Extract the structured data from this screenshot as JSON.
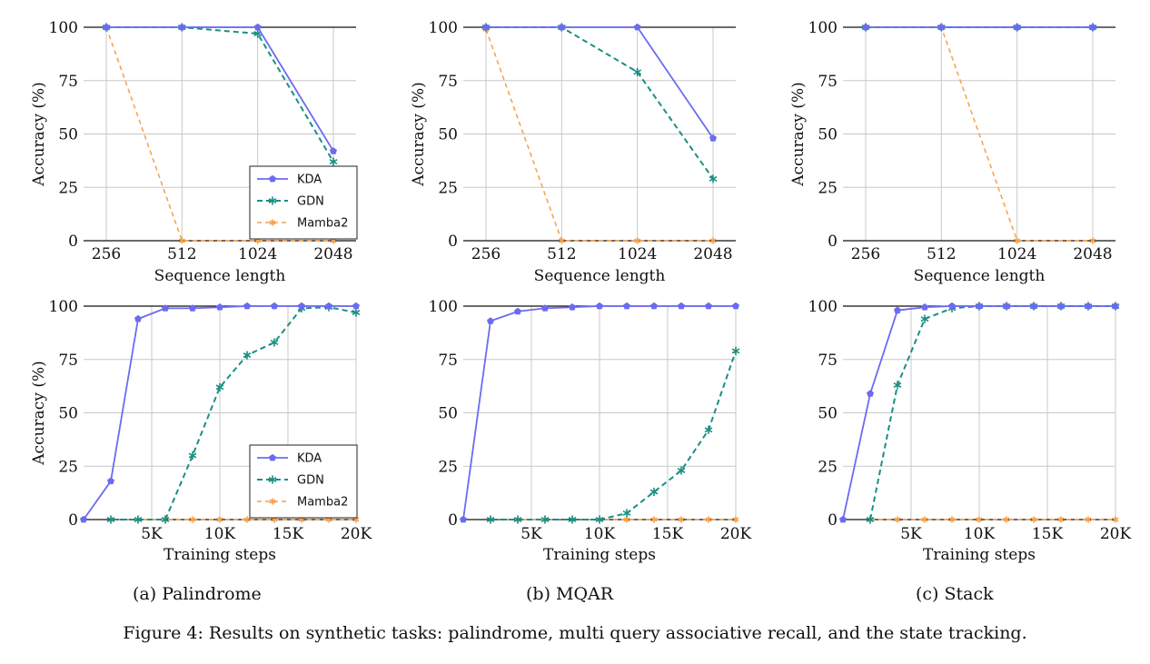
{
  "figure_caption": "Figure 4: Results on synthetic tasks: palindrome, multi query associative recall, and the state tracking.",
  "subcaptions": [
    "(a) Palindrome",
    "(b) MQAR",
    "(c) Stack"
  ],
  "colors": {
    "KDA": "#6b6bf2",
    "GDN": "#1a8f84",
    "Mamba2": "#f5a04a",
    "grid": "#c8c8c8"
  },
  "chart_data": [
    {
      "type": "line",
      "panel": "palindrome-seq",
      "xlabel": "Sequence length",
      "ylabel": "Accuracy (%)",
      "x": [
        256,
        512,
        1024,
        2048
      ],
      "xticks": [
        "256",
        "512",
        "1024",
        "2048"
      ],
      "x_scale": "categorical",
      "ylim": [
        0,
        100
      ],
      "yticks": [
        0,
        25,
        50,
        75,
        100
      ],
      "grid": true,
      "legend": "bottom-right",
      "series": [
        {
          "name": "KDA",
          "values": [
            100,
            100,
            100,
            42
          ]
        },
        {
          "name": "GDN",
          "values": [
            100,
            100,
            97,
            37
          ]
        },
        {
          "name": "Mamba2",
          "values": [
            100,
            0,
            0,
            0
          ]
        }
      ]
    },
    {
      "type": "line",
      "panel": "mqar-seq",
      "xlabel": "Sequence length",
      "ylabel": "Accuracy (%)",
      "x": [
        256,
        512,
        1024,
        2048
      ],
      "xticks": [
        "256",
        "512",
        "1024",
        "2048"
      ],
      "x_scale": "categorical",
      "ylim": [
        0,
        100
      ],
      "yticks": [
        0,
        25,
        50,
        75,
        100
      ],
      "grid": true,
      "legend": null,
      "series": [
        {
          "name": "KDA",
          "values": [
            100,
            100,
            100,
            48
          ]
        },
        {
          "name": "GDN",
          "values": [
            100,
            100,
            79,
            29
          ]
        },
        {
          "name": "Mamba2",
          "values": [
            99,
            0,
            0,
            0
          ]
        }
      ]
    },
    {
      "type": "line",
      "panel": "stack-seq",
      "xlabel": "Sequence length",
      "ylabel": "Accuracy (%)",
      "x": [
        256,
        512,
        1024,
        2048
      ],
      "xticks": [
        "256",
        "512",
        "1024",
        "2048"
      ],
      "x_scale": "categorical",
      "ylim": [
        0,
        100
      ],
      "yticks": [
        0,
        25,
        50,
        75,
        100
      ],
      "grid": true,
      "legend": null,
      "series": [
        {
          "name": "KDA",
          "values": [
            100,
            100,
            100,
            100
          ]
        },
        {
          "name": "GDN",
          "values": [
            100,
            100,
            100,
            100
          ]
        },
        {
          "name": "Mamba2",
          "values": [
            100,
            100,
            0,
            0
          ]
        }
      ]
    },
    {
      "type": "line",
      "panel": "palindrome-steps",
      "xlabel": "Training steps",
      "ylabel": "Accuracy (%)",
      "x": [
        0,
        2000,
        4000,
        6000,
        8000,
        10000,
        12000,
        14000,
        16000,
        18000,
        20000
      ],
      "xticks": [
        "5K",
        "10K",
        "15K",
        "20K"
      ],
      "xtick_values": [
        5000,
        10000,
        15000,
        20000
      ],
      "x_scale": "linear",
      "xlim": [
        0,
        20000
      ],
      "ylim": [
        0,
        100
      ],
      "yticks": [
        0,
        25,
        50,
        75,
        100
      ],
      "grid": true,
      "legend": "bottom-right",
      "series": [
        {
          "name": "KDA",
          "values": [
            0,
            18,
            94,
            99,
            99,
            99.5,
            100,
            100,
            100,
            100,
            100
          ],
          "x": [
            0,
            2000,
            4000,
            6000,
            8000,
            10000,
            12000,
            14000,
            16000,
            18000,
            20000
          ]
        },
        {
          "name": "GDN",
          "values": [
            0,
            0,
            0,
            30,
            62,
            77,
            83,
            99,
            99.5,
            97
          ],
          "x": [
            2000,
            4000,
            6000,
            8000,
            10000,
            12000,
            14000,
            16000,
            18000,
            20000
          ]
        },
        {
          "name": "Mamba2",
          "values": [
            0,
            0,
            0,
            0,
            0,
            0,
            0,
            0,
            0,
            0
          ],
          "x": [
            2000,
            4000,
            6000,
            8000,
            10000,
            12000,
            14000,
            16000,
            18000,
            20000
          ]
        }
      ]
    },
    {
      "type": "line",
      "panel": "mqar-steps",
      "xlabel": "Training steps",
      "ylabel": "",
      "x": [
        0,
        2000,
        4000,
        6000,
        8000,
        10000,
        12000,
        14000,
        16000,
        18000,
        20000
      ],
      "xticks": [
        "5K",
        "10K",
        "15K",
        "20K"
      ],
      "xtick_values": [
        5000,
        10000,
        15000,
        20000
      ],
      "x_scale": "linear",
      "xlim": [
        0,
        20000
      ],
      "ylim": [
        0,
        100
      ],
      "yticks": [
        0,
        25,
        50,
        75,
        100
      ],
      "grid": true,
      "legend": null,
      "series": [
        {
          "name": "KDA",
          "values": [
            0,
            93,
            97.5,
            99,
            99.5,
            100,
            100,
            100,
            100,
            100,
            100
          ],
          "x": [
            0,
            2000,
            4000,
            6000,
            8000,
            10000,
            12000,
            14000,
            16000,
            18000,
            20000
          ]
        },
        {
          "name": "GDN",
          "values": [
            0,
            0,
            0,
            0,
            0,
            3,
            13,
            23,
            42,
            79
          ],
          "x": [
            2000,
            4000,
            6000,
            8000,
            10000,
            12000,
            14000,
            16000,
            18000,
            20000
          ]
        },
        {
          "name": "Mamba2",
          "values": [
            0,
            0,
            0,
            0,
            0,
            0,
            0,
            0,
            0,
            0
          ],
          "x": [
            2000,
            4000,
            6000,
            8000,
            10000,
            12000,
            14000,
            16000,
            18000,
            20000
          ]
        }
      ]
    },
    {
      "type": "line",
      "panel": "stack-steps",
      "xlabel": "Training steps",
      "ylabel": "",
      "x": [
        0,
        2000,
        4000,
        6000,
        8000,
        10000,
        12000,
        14000,
        16000,
        18000,
        20000
      ],
      "xticks": [
        "5K",
        "10K",
        "15K",
        "20K"
      ],
      "xtick_values": [
        5000,
        10000,
        15000,
        20000
      ],
      "x_scale": "linear",
      "xlim": [
        0,
        20000
      ],
      "ylim": [
        0,
        100
      ],
      "yticks": [
        0,
        25,
        50,
        75,
        100
      ],
      "grid": true,
      "legend": null,
      "series": [
        {
          "name": "KDA",
          "values": [
            0,
            59,
            98,
            99.5,
            100,
            100,
            100,
            100,
            100,
            100,
            100
          ],
          "x": [
            0,
            2000,
            4000,
            6000,
            8000,
            10000,
            12000,
            14000,
            16000,
            18000,
            20000
          ]
        },
        {
          "name": "GDN",
          "values": [
            0,
            63,
            94,
            99,
            100,
            100,
            100,
            100,
            100,
            100
          ],
          "x": [
            2000,
            4000,
            6000,
            8000,
            10000,
            12000,
            14000,
            16000,
            18000,
            20000
          ]
        },
        {
          "name": "Mamba2",
          "values": [
            0,
            0,
            0,
            0,
            0,
            0,
            0,
            0,
            0,
            0
          ],
          "x": [
            2000,
            4000,
            6000,
            8000,
            10000,
            12000,
            14000,
            16000,
            18000,
            20000
          ]
        }
      ]
    }
  ]
}
